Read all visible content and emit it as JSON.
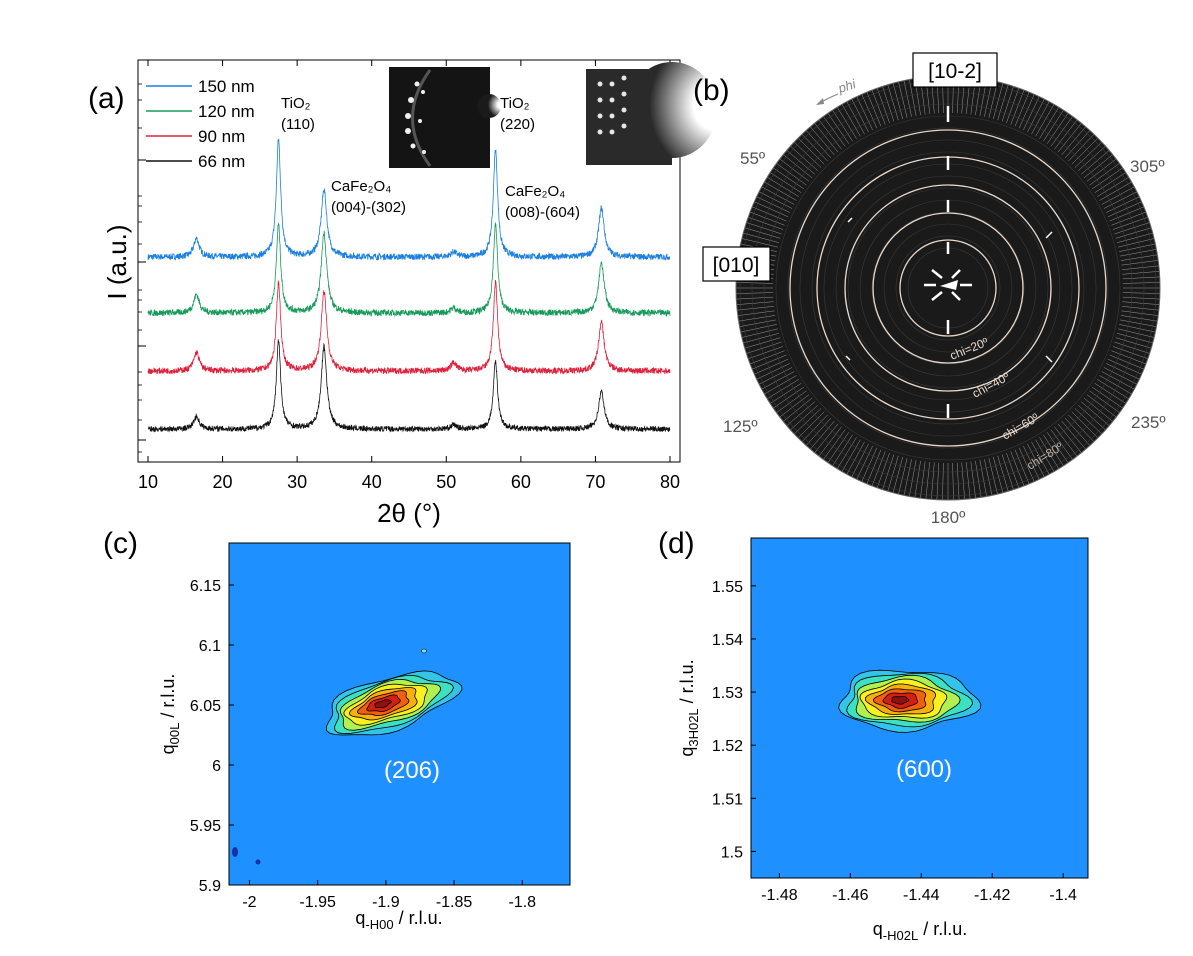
{
  "panel_labels": [
    "(a)",
    "(b)",
    "(c)",
    "(d)"
  ],
  "colors": {
    "s150": "#1a7fe0",
    "s120": "#169a5a",
    "s90": "#e0203a",
    "s66": "#111111",
    "map_bg": "#1e90ff",
    "polar_bg": "#1a1a1a",
    "polar_ring": "#e8d8cc"
  },
  "chart_data": [
    {
      "type": "line",
      "panel": "(a)",
      "xlabel": "2θ (°)",
      "ylabel": "I (a.u.)",
      "xlim": [
        10,
        80
      ],
      "yscale": "log (offset traces)",
      "xticks": [
        10,
        20,
        30,
        40,
        50,
        60,
        70,
        80
      ],
      "xtick_labels": [
        "10",
        "20",
        "30",
        "40",
        "50",
        "60",
        "70",
        "80"
      ],
      "series": [
        {
          "name": "150 nm",
          "color": "#1a7fe0",
          "baseline": 0.82,
          "peaks": [
            [
              16.5,
              0.22
            ],
            [
              27.5,
              1.4
            ],
            [
              33.6,
              0.8
            ],
            [
              51.0,
              0.06
            ],
            [
              56.6,
              1.28
            ],
            [
              70.8,
              0.58
            ]
          ]
        },
        {
          "name": "120 nm",
          "color": "#169a5a",
          "baseline": 0.82,
          "peaks": [
            [
              16.5,
              0.22
            ],
            [
              27.5,
              1.05
            ],
            [
              33.6,
              0.95
            ],
            [
              51.0,
              0.06
            ],
            [
              56.6,
              1.05
            ],
            [
              70.8,
              0.6
            ]
          ]
        },
        {
          "name": "90 nm",
          "color": "#e0203a",
          "baseline": 0.82,
          "peaks": [
            [
              16.5,
              0.22
            ],
            [
              27.5,
              1.05
            ],
            [
              33.6,
              0.95
            ],
            [
              51.0,
              0.1
            ],
            [
              56.6,
              1.05
            ],
            [
              70.8,
              0.58
            ]
          ]
        },
        {
          "name": "66 nm",
          "color": "#111111",
          "baseline": 0.72,
          "peaks": [
            [
              16.5,
              0.15
            ],
            [
              27.5,
              1.05
            ],
            [
              33.6,
              0.98
            ],
            [
              51.0,
              0.05
            ],
            [
              56.6,
              0.8
            ],
            [
              70.8,
              0.45
            ]
          ]
        }
      ],
      "annotations": [
        {
          "line1": "TiO₂",
          "line2": "(110)"
        },
        {
          "line1": "CaFe₂O₄",
          "line2": "(004)-(302)"
        },
        {
          "line1": "TiO₂",
          "line2": "(220)"
        },
        {
          "line1": "CaFe₂O₄",
          "line2": "(008)-(604)"
        }
      ]
    },
    {
      "type": "pole_figure",
      "panel": "(b)",
      "rings": [
        {
          "chi": 20,
          "label": "chi=20º"
        },
        {
          "chi": 40,
          "label": "chi=40º"
        },
        {
          "chi": 60,
          "label": "chi=60º"
        },
        {
          "chi": 80,
          "label": "chi=80º"
        }
      ],
      "phi_labels": [
        "55º",
        "305º",
        "125º",
        "235º",
        "180º"
      ],
      "boxed_labels": [
        "[10-2]",
        "[010]"
      ],
      "phi_arrow_label": "phi"
    },
    {
      "type": "heatmap",
      "panel": "(c)",
      "xlabel_main": "q",
      "xlabel_sub": "-H00",
      "xlabel_tail": " / r.l.u.",
      "ylabel_main": "q",
      "ylabel_sub": "00L",
      "ylabel_tail": " / r.l.u.",
      "xlim": [
        -2.015,
        -1.765
      ],
      "ylim": [
        5.9,
        6.185
      ],
      "xticks": [
        -2,
        -1.95,
        -1.9,
        -1.85,
        -1.8
      ],
      "xtick_labels": [
        "-2",
        "-1.95",
        "-1.9",
        "-1.85",
        "-1.8"
      ],
      "yticks": [
        5.9,
        5.95,
        6,
        6.05,
        6.1,
        6.15
      ],
      "ytick_labels": [
        "5.9",
        "5.95",
        "6",
        "6.05",
        "6.1",
        "6.15"
      ],
      "peak": {
        "x": -1.897,
        "y": 6.051
      },
      "peak_label": "(206)"
    },
    {
      "type": "heatmap",
      "panel": "(d)",
      "xlabel_main": "q",
      "xlabel_sub": "-H02L",
      "xlabel_tail": " / r.l.u.",
      "ylabel_main": "q",
      "ylabel_sub": "3H02L",
      "ylabel_tail": " / r.l.u.",
      "xlim": [
        -1.488,
        -1.393
      ],
      "ylim": [
        1.495,
        1.559
      ],
      "xticks": [
        -1.48,
        -1.46,
        -1.44,
        -1.42,
        -1.4
      ],
      "xtick_labels": [
        "-1.48",
        "-1.46",
        "-1.44",
        "-1.42",
        "-1.4"
      ],
      "yticks": [
        1.5,
        1.51,
        1.52,
        1.53,
        1.54,
        1.55
      ],
      "ytick_labels": [
        "1.5",
        "1.51",
        "1.52",
        "1.53",
        "1.54",
        "1.55"
      ],
      "peak": {
        "x": -1.444,
        "y": 1.5285
      },
      "peak_label": "(600)"
    }
  ]
}
